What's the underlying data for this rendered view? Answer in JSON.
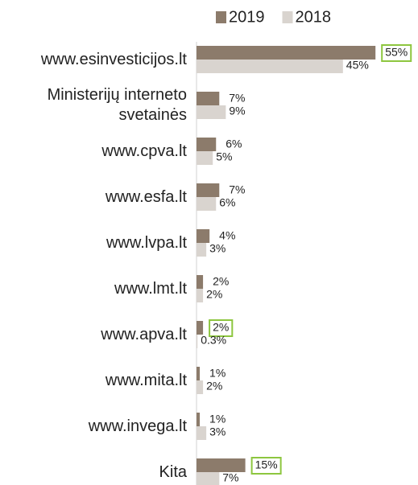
{
  "chart_data": {
    "type": "hbar",
    "categories": [
      "www.esinvesticijos.lt",
      "Ministerijų interneto svetainės",
      "www.cpva.lt",
      "www.esfa.lt",
      "www.lvpa.lt",
      "www.lmt.lt",
      "www.apva.lt",
      "www.mita.lt",
      "www.invega.lt",
      "Kita"
    ],
    "series": [
      {
        "name": "2019",
        "color": "#8c7b6b",
        "values": [
          55,
          7,
          6,
          7,
          4,
          2,
          2,
          1,
          1,
          15
        ],
        "value_labels": [
          "55%",
          "7%",
          "6%",
          "7%",
          "4%",
          "2%",
          "2%",
          "1%",
          "1%",
          "15%"
        ],
        "highlighted": [
          0,
          6,
          9
        ]
      },
      {
        "name": "2018",
        "color": "#d9d4cf",
        "values": [
          45,
          9,
          5,
          6,
          3,
          2,
          0.3,
          2,
          3,
          7
        ],
        "value_labels": [
          "45%",
          "9%",
          "5%",
          "6%",
          "3%",
          "2%",
          "0.3%",
          "2%",
          "3%",
          "7%"
        ]
      }
    ],
    "highlight_color": "#8dc63f",
    "legend": "top"
  }
}
